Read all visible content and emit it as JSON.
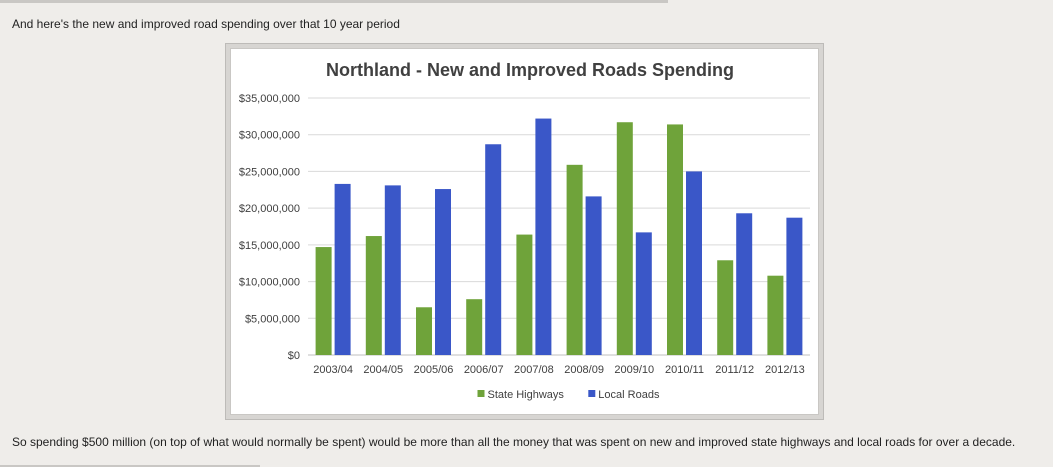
{
  "page": {
    "intro_text": "And here's the new and improved road spending over that 10 year period",
    "outro_text": "So spending $500 million (on top of what would normally be spent) would be more than all the money that was spent on new and improved state highways and local roads for over a decade."
  },
  "colors": {
    "state_highways": "#6fa33a",
    "local_roads": "#3a57c8",
    "grid": "#d9d9d9",
    "title": "#404040"
  },
  "chart_data": {
    "type": "bar",
    "title": "Northland - New and Improved Roads Spending",
    "xlabel": "",
    "ylabel": "",
    "ylim": [
      0,
      35000000
    ],
    "yticks": [
      "$0",
      "$5,000,000",
      "$10,000,000",
      "$15,000,000",
      "$20,000,000",
      "$25,000,000",
      "$30,000,000",
      "$35,000,000"
    ],
    "categories": [
      "2003/04",
      "2004/05",
      "2005/06",
      "2006/07",
      "2007/08",
      "2008/09",
      "2009/10",
      "2010/11",
      "2011/12",
      "2012/13"
    ],
    "series": [
      {
        "name": "State Highways",
        "values": [
          14700000,
          16200000,
          6500000,
          7600000,
          16400000,
          25900000,
          31700000,
          31400000,
          12900000,
          10800000
        ]
      },
      {
        "name": "Local Roads",
        "values": [
          23300000,
          23100000,
          22600000,
          28700000,
          32200000,
          21600000,
          16700000,
          25000000,
          19300000,
          18700000
        ]
      }
    ],
    "legend_position": "bottom",
    "grid": true
  }
}
